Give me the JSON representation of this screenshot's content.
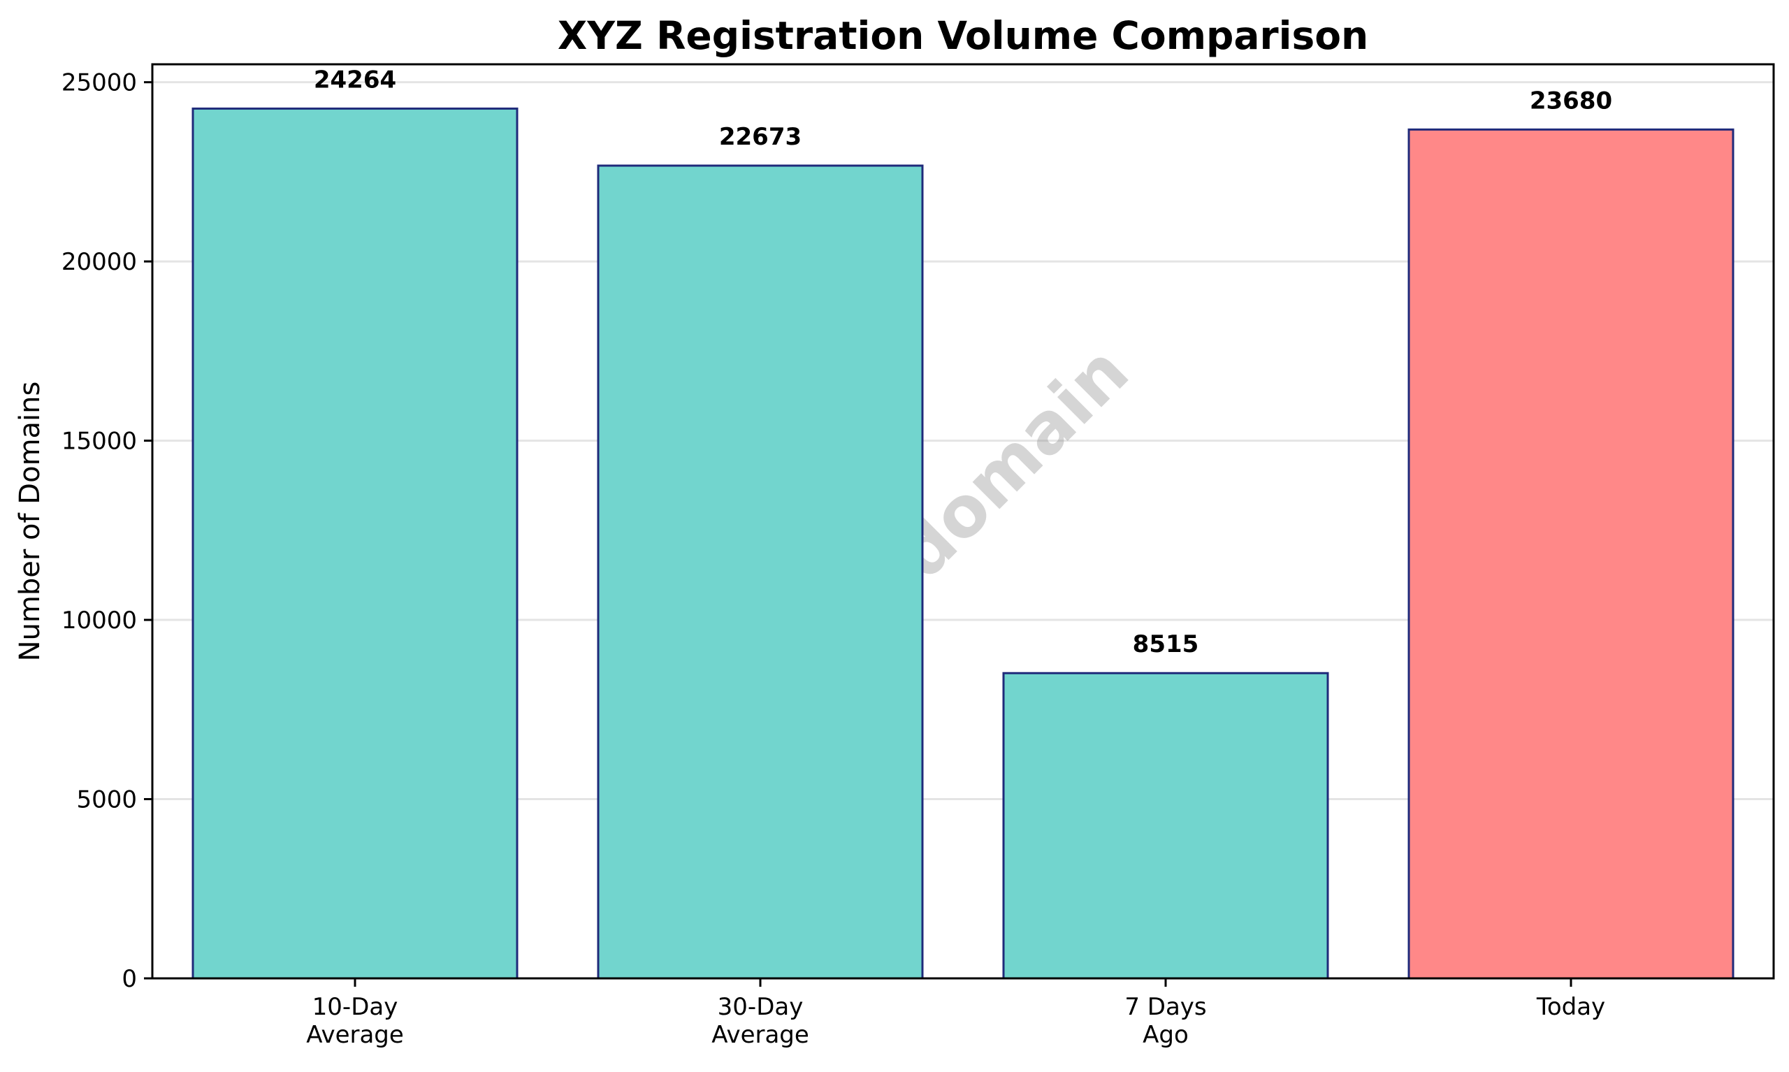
{
  "chart_data": {
    "type": "bar",
    "title": "XYZ Registration Volume Comparison",
    "xlabel": "",
    "ylabel": "Number of Domains",
    "categories": [
      "10-Day\nAverage",
      "30-Day\nAverage",
      "7 Days\nAgo",
      "Today"
    ],
    "values": [
      24264,
      22673,
      8515,
      23680
    ],
    "data_labels": [
      "24264",
      "22673",
      "8515",
      "23680"
    ],
    "bar_colors": [
      "#72d5ce",
      "#72d5ce",
      "#72d5ce",
      "#ff8888"
    ],
    "bar_edge_color": "#1f2a7a",
    "ylim": [
      0,
      25500
    ],
    "yticks": [
      0,
      5000,
      10000,
      15000,
      20000,
      25000
    ],
    "ytick_labels": [
      "0",
      "5000",
      "10000",
      "15000",
      "20000",
      "25000"
    ],
    "grid": "horizontal",
    "legend": "none",
    "watermark": "ABTdomain"
  }
}
